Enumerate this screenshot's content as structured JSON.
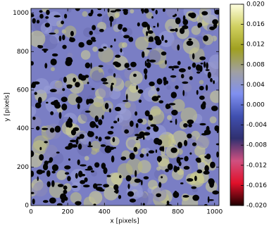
{
  "chart_data": {
    "type": "image",
    "xlabel": "x [pixels]",
    "ylabel": "y [pixels]",
    "xlim": [
      0,
      1024
    ],
    "ylim": [
      0,
      1024
    ],
    "xticks": [
      0,
      200,
      400,
      600,
      800,
      1000
    ],
    "yticks": [
      0,
      200,
      400,
      600,
      800,
      1000
    ],
    "colorbar": {
      "lim": [
        -0.02,
        0.02
      ],
      "ticks": [
        {
          "value": 0.02,
          "label": "0.020"
        },
        {
          "value": 0.016,
          "label": "0.016"
        },
        {
          "value": 0.012,
          "label": "0.012"
        },
        {
          "value": 0.008,
          "label": "0.008"
        },
        {
          "value": 0.004,
          "label": "0.004"
        },
        {
          "value": 0,
          "label": "0.000"
        },
        {
          "value": -0.004,
          "label": "-0.004"
        },
        {
          "value": -0.008,
          "label": "-0.008"
        },
        {
          "value": -0.012,
          "label": "-0.012"
        },
        {
          "value": -0.016,
          "label": "-0.016"
        },
        {
          "value": -0.02,
          "label": "-0.020"
        }
      ],
      "colormap": [
        "#200000",
        "#e0102a",
        "#d05080",
        "#303070",
        "#4050b0",
        "#8090f0",
        "#a0a0a0",
        "#a0a020",
        "#d0d060",
        "#ffffe0"
      ]
    }
  }
}
